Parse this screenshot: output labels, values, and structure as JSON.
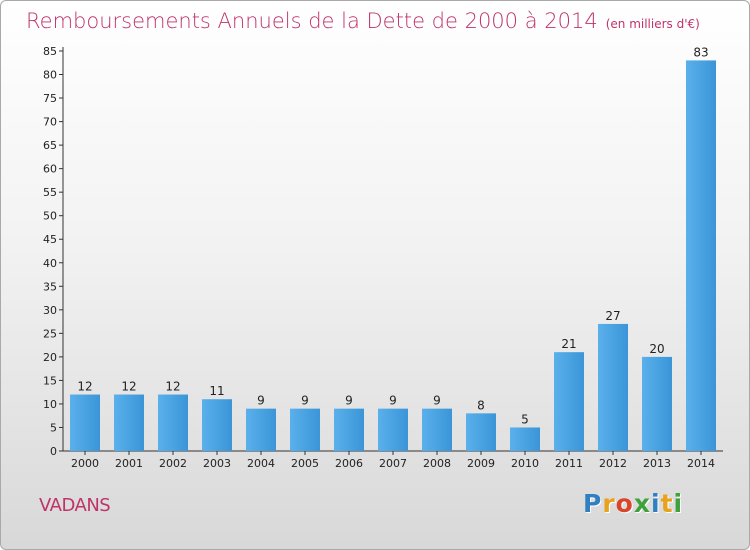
{
  "chart_data": {
    "type": "bar",
    "title": "Remboursements Annuels de la Dette de 2000 à 2014",
    "subtitle": "(en milliers d'€)",
    "categories": [
      "2000",
      "2001",
      "2002",
      "2003",
      "2004",
      "2005",
      "2006",
      "2007",
      "2008",
      "2009",
      "2010",
      "2011",
      "2012",
      "2013",
      "2014"
    ],
    "values": [
      12,
      12,
      12,
      11,
      9,
      9,
      9,
      9,
      9,
      8,
      5,
      21,
      27,
      20,
      83
    ],
    "ylim": [
      0,
      85
    ],
    "yticks": [
      0,
      5,
      10,
      15,
      20,
      25,
      30,
      35,
      40,
      45,
      50,
      55,
      60,
      65,
      70,
      75,
      80,
      85
    ],
    "grid": false,
    "bar_color": "#3a95d8"
  },
  "footer": {
    "commune": "VADANS",
    "logo_letters": [
      "P",
      "r",
      "o",
      "x",
      "i",
      "t",
      "i"
    ],
    "logo_colors": [
      "#2f7fc1",
      "#e8a21c",
      "#d8452b",
      "#3da23a",
      "#2f7fc1",
      "#e8a21c",
      "#3da23a"
    ]
  }
}
